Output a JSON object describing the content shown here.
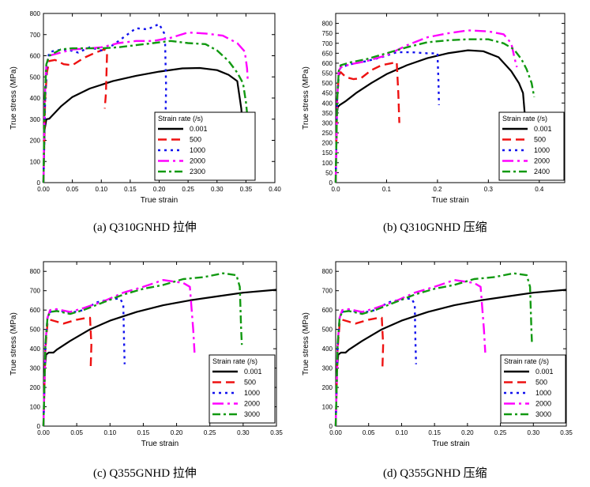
{
  "chart_data": [
    {
      "type": "line",
      "caption": "(a) Q310GNHD 拉伸",
      "xlabel": "True strain",
      "ylabel": "True stress (MPa)",
      "xlim": [
        0,
        0.4
      ],
      "ylim": [
        0,
        800
      ],
      "xticks": [
        "0.00",
        "0.05",
        "0.10",
        "0.15",
        "0.20",
        "0.25",
        "0.30",
        "0.35",
        "0.40"
      ],
      "yticks": [
        "0",
        "100",
        "200",
        "300",
        "400",
        "500",
        "600",
        "700",
        "800"
      ],
      "legend_title": "Strain rate (/s)",
      "legend_position": "lower-right",
      "series": [
        {
          "name": "0.001",
          "color": "#000000",
          "x": [
            0,
            0.002,
            0.005,
            0.01,
            0.03,
            0.05,
            0.08,
            0.12,
            0.16,
            0.2,
            0.24,
            0.27,
            0.3,
            0.32,
            0.335,
            0.342,
            0.346,
            0.349,
            0.35
          ],
          "y": [
            0,
            250,
            300,
            302,
            360,
            405,
            445,
            480,
            505,
            525,
            540,
            542,
            532,
            510,
            480,
            350,
            200,
            120,
            100
          ]
        },
        {
          "name": "500",
          "color": "#ee1111",
          "x": [
            0,
            0.003,
            0.006,
            0.01,
            0.02,
            0.035,
            0.05,
            0.07,
            0.09,
            0.105,
            0.11,
            0.108,
            0.106
          ],
          "y": [
            0,
            400,
            520,
            575,
            580,
            560,
            555,
            590,
            615,
            630,
            620,
            420,
            350
          ]
        },
        {
          "name": "1000",
          "color": "#1111ee",
          "x": [
            0,
            0.003,
            0.006,
            0.01,
            0.02,
            0.04,
            0.06,
            0.08,
            0.1,
            0.12,
            0.14,
            0.16,
            0.18,
            0.2,
            0.21,
            0.212,
            0.211
          ],
          "y": [
            0,
            400,
            560,
            615,
            625,
            630,
            615,
            640,
            625,
            650,
            690,
            730,
            725,
            750,
            700,
            450,
            320
          ]
        },
        {
          "name": "2000",
          "color": "#ff00ff",
          "x": [
            0,
            0.002,
            0.005,
            0.01,
            0.03,
            0.05,
            0.08,
            0.1,
            0.13,
            0.16,
            0.19,
            0.22,
            0.25,
            0.28,
            0.31,
            0.335,
            0.348,
            0.352,
            0.353
          ],
          "y": [
            0,
            380,
            560,
            600,
            615,
            630,
            635,
            640,
            660,
            670,
            670,
            685,
            710,
            705,
            695,
            660,
            620,
            540,
            490
          ]
        },
        {
          "name": "2300",
          "color": "#119911",
          "x": [
            0,
            0.002,
            0.005,
            0.01,
            0.03,
            0.05,
            0.08,
            0.1,
            0.13,
            0.16,
            0.19,
            0.22,
            0.25,
            0.28,
            0.3,
            0.32,
            0.335,
            0.345,
            0.35,
            0.353,
            0.355
          ],
          "y": [
            0,
            380,
            560,
            600,
            630,
            635,
            635,
            635,
            640,
            650,
            660,
            670,
            660,
            655,
            625,
            575,
            520,
            470,
            380,
            300,
            220
          ]
        }
      ]
    },
    {
      "type": "line",
      "caption": "(b) Q310GNHD 压缩",
      "xlabel": "True strain",
      "ylabel": "True stress (MPa)",
      "xlim": [
        0,
        0.45
      ],
      "ylim": [
        0,
        850
      ],
      "xticks": [
        "0.0",
        "0.1",
        "0.2",
        "0.3",
        "0.4"
      ],
      "yticks": [
        "0",
        "50",
        "100",
        "150",
        "200",
        "250",
        "300",
        "350",
        "400",
        "450",
        "500",
        "550",
        "600",
        "650",
        "700",
        "750",
        "800"
      ],
      "legend_title": "Strain rate (/s)",
      "legend_position": "lower-right",
      "series": [
        {
          "name": "0.001",
          "color": "#000000",
          "x": [
            0,
            0.002,
            0.004,
            0.008,
            0.02,
            0.04,
            0.07,
            0.1,
            0.14,
            0.18,
            0.22,
            0.26,
            0.29,
            0.32,
            0.345,
            0.36,
            0.368,
            0.372
          ],
          "y": [
            0,
            330,
            380,
            390,
            410,
            450,
            500,
            545,
            590,
            625,
            650,
            665,
            660,
            630,
            560,
            500,
            450,
            330
          ]
        },
        {
          "name": "500",
          "color": "#ee1111",
          "x": [
            0,
            0.003,
            0.006,
            0.01,
            0.02,
            0.035,
            0.05,
            0.07,
            0.09,
            0.11,
            0.12,
            0.123,
            0.125
          ],
          "y": [
            0,
            420,
            540,
            555,
            530,
            520,
            525,
            565,
            590,
            600,
            605,
            450,
            300
          ]
        },
        {
          "name": "1000",
          "color": "#1111ee",
          "x": [
            0,
            0.003,
            0.006,
            0.01,
            0.03,
            0.06,
            0.09,
            0.12,
            0.15,
            0.18,
            0.2,
            0.202,
            0.203
          ],
          "y": [
            0,
            420,
            540,
            580,
            595,
            610,
            630,
            655,
            655,
            650,
            650,
            500,
            390
          ]
        },
        {
          "name": "2000",
          "color": "#ff00ff",
          "x": [
            0,
            0.003,
            0.006,
            0.01,
            0.03,
            0.06,
            0.1,
            0.14,
            0.18,
            0.22,
            0.26,
            0.3,
            0.33,
            0.345,
            0.352,
            0.356
          ],
          "y": [
            0,
            420,
            560,
            580,
            595,
            610,
            640,
            690,
            730,
            750,
            765,
            760,
            745,
            700,
            620,
            580
          ]
        },
        {
          "name": "2400",
          "color": "#119911",
          "x": [
            0,
            0.003,
            0.006,
            0.01,
            0.03,
            0.06,
            0.1,
            0.14,
            0.18,
            0.22,
            0.26,
            0.3,
            0.33,
            0.35,
            0.365,
            0.375,
            0.385,
            0.39
          ],
          "y": [
            0,
            420,
            560,
            590,
            605,
            620,
            650,
            680,
            705,
            715,
            720,
            720,
            700,
            670,
            620,
            570,
            500,
            430
          ]
        }
      ]
    },
    {
      "type": "line",
      "caption": "(c) Q355GNHD 拉伸",
      "xlabel": "True strain",
      "ylabel": "True stress (MPa)",
      "xlim": [
        0,
        0.35
      ],
      "ylim": [
        0,
        850
      ],
      "xticks": [
        "0.00",
        "0.05",
        "0.10",
        "0.15",
        "0.20",
        "0.25",
        "0.30",
        "0.35"
      ],
      "yticks": [
        "0",
        "100",
        "200",
        "300",
        "400",
        "500",
        "600",
        "700",
        "800"
      ],
      "legend_title": "Strain rate (/s)",
      "legend_position": "lower-right",
      "series": [
        {
          "name": "0.001",
          "color": "#000000",
          "x": [
            0,
            0.002,
            0.004,
            0.008,
            0.015,
            0.02,
            0.04,
            0.07,
            0.1,
            0.14,
            0.18,
            0.22,
            0.26,
            0.3,
            0.35
          ],
          "y": [
            0,
            300,
            370,
            380,
            380,
            395,
            440,
            500,
            545,
            590,
            625,
            650,
            670,
            690,
            705
          ]
        },
        {
          "name": "500",
          "color": "#ee1111",
          "x": [
            0,
            0.003,
            0.006,
            0.01,
            0.02,
            0.03,
            0.05,
            0.065,
            0.07,
            0.072,
            0.071
          ],
          "y": [
            0,
            400,
            530,
            550,
            540,
            530,
            550,
            560,
            560,
            420,
            300
          ]
        },
        {
          "name": "1000",
          "color": "#1111ee",
          "x": [
            0,
            0.003,
            0.006,
            0.01,
            0.02,
            0.04,
            0.06,
            0.08,
            0.1,
            0.115,
            0.12,
            0.121,
            0.122
          ],
          "y": [
            0,
            420,
            560,
            590,
            600,
            585,
            600,
            640,
            655,
            660,
            630,
            450,
            320
          ]
        },
        {
          "name": "2000",
          "color": "#ff00ff",
          "x": [
            0,
            0.003,
            0.006,
            0.01,
            0.02,
            0.04,
            0.06,
            0.09,
            0.12,
            0.15,
            0.18,
            0.21,
            0.22,
            0.225,
            0.227
          ],
          "y": [
            0,
            420,
            560,
            600,
            605,
            590,
            610,
            645,
            690,
            720,
            755,
            740,
            720,
            500,
            380
          ]
        },
        {
          "name": "3000",
          "color": "#119911",
          "x": [
            0,
            0.003,
            0.006,
            0.01,
            0.02,
            0.04,
            0.06,
            0.09,
            0.12,
            0.15,
            0.18,
            0.21,
            0.24,
            0.27,
            0.29,
            0.295,
            0.297,
            0.298
          ],
          "y": [
            0,
            420,
            560,
            590,
            595,
            580,
            600,
            640,
            680,
            710,
            730,
            760,
            770,
            790,
            780,
            720,
            500,
            420
          ]
        }
      ]
    },
    {
      "type": "line",
      "caption": "(d) Q355GNHD 压缩",
      "xlabel": "True strain",
      "ylabel": "True stress (MPa)",
      "xlim": [
        0,
        0.35
      ],
      "ylim": [
        0,
        850
      ],
      "xticks": [
        "0.00",
        "0.05",
        "0.10",
        "0.15",
        "0.20",
        "0.25",
        "0.30",
        "0.35"
      ],
      "yticks": [
        "0",
        "100",
        "200",
        "300",
        "400",
        "500",
        "600",
        "700",
        "800"
      ],
      "legend_title": "Strain rate (/s)",
      "legend_position": "lower-right",
      "series": [
        {
          "name": "0.001",
          "color": "#000000",
          "x": [
            0,
            0.002,
            0.004,
            0.008,
            0.015,
            0.02,
            0.04,
            0.07,
            0.1,
            0.14,
            0.18,
            0.22,
            0.26,
            0.3,
            0.35
          ],
          "y": [
            0,
            300,
            370,
            380,
            380,
            395,
            440,
            500,
            545,
            590,
            625,
            650,
            670,
            690,
            705
          ]
        },
        {
          "name": "500",
          "color": "#ee1111",
          "x": [
            0,
            0.003,
            0.006,
            0.01,
            0.02,
            0.03,
            0.05,
            0.065,
            0.07,
            0.072,
            0.071
          ],
          "y": [
            0,
            400,
            530,
            550,
            540,
            530,
            550,
            560,
            560,
            420,
            300
          ]
        },
        {
          "name": "1000",
          "color": "#1111ee",
          "x": [
            0,
            0.003,
            0.006,
            0.01,
            0.02,
            0.04,
            0.06,
            0.08,
            0.1,
            0.115,
            0.12,
            0.121,
            0.122
          ],
          "y": [
            0,
            420,
            560,
            590,
            600,
            585,
            600,
            640,
            655,
            660,
            630,
            450,
            320
          ]
        },
        {
          "name": "2000",
          "color": "#ff00ff",
          "x": [
            0,
            0.003,
            0.006,
            0.01,
            0.02,
            0.04,
            0.06,
            0.09,
            0.12,
            0.15,
            0.18,
            0.21,
            0.22,
            0.225,
            0.227
          ],
          "y": [
            0,
            420,
            560,
            600,
            605,
            590,
            610,
            645,
            690,
            720,
            755,
            740,
            720,
            500,
            380
          ]
        },
        {
          "name": "3000",
          "color": "#119911",
          "x": [
            0,
            0.003,
            0.006,
            0.01,
            0.02,
            0.04,
            0.06,
            0.09,
            0.12,
            0.15,
            0.18,
            0.21,
            0.24,
            0.27,
            0.29,
            0.295,
            0.297,
            0.298
          ],
          "y": [
            0,
            420,
            560,
            590,
            595,
            580,
            600,
            640,
            680,
            710,
            730,
            760,
            770,
            790,
            780,
            720,
            500,
            420
          ]
        }
      ]
    }
  ]
}
